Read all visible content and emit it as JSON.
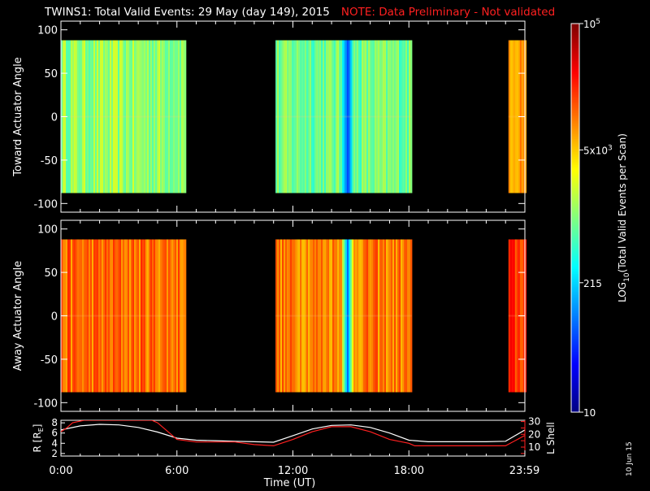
{
  "header": {
    "title": "TWINS1: Total Valid Events: 29 May (day 149), 2015",
    "note": "NOTE: Data Preliminary - Not validated"
  },
  "date_stamp": "10 Jun 15",
  "colorbar": {
    "label": "LOG10(Total Valid Events per Scan)",
    "ticks": [
      {
        "value": 100000,
        "label": "10^5"
      },
      {
        "value": 5000,
        "label": "5x10^3"
      },
      {
        "value": 215,
        "label": "215"
      },
      {
        "value": 10,
        "label": "10"
      }
    ],
    "scale": "log",
    "range": [
      10,
      100000
    ]
  },
  "colors": {
    "axis": "#ffffff",
    "note": "#ff2020",
    "lshell": "#ff2020",
    "radius": "#ffffff"
  },
  "chart_data": [
    {
      "type": "heatmap",
      "panel": "top",
      "ylabel": "Toward Actuator Angle",
      "ylim": [
        -110,
        110
      ],
      "yticks": [
        100,
        50,
        0,
        -50,
        -100
      ],
      "xlim": [
        0,
        24
      ],
      "angle_range": [
        -88,
        88
      ],
      "scale": "log",
      "data_blocks": [
        {
          "start_hour": 0.0,
          "end_hour": 6.45,
          "typical_events": 1200
        },
        {
          "start_hour": 11.1,
          "end_hour": 18.15,
          "typical_events": 900,
          "min_at_hour": 14.8,
          "min_events": 60
        },
        {
          "start_hour": 23.15,
          "end_hour": 24.0,
          "typical_events": 9000
        }
      ]
    },
    {
      "type": "heatmap",
      "panel": "middle",
      "ylabel": "Away Actuator Angle",
      "ylim": [
        -110,
        110
      ],
      "yticks": [
        100,
        50,
        0,
        -50,
        -100
      ],
      "xlim": [
        0,
        24
      ],
      "angle_range": [
        -88,
        88
      ],
      "scale": "log",
      "data_blocks": [
        {
          "start_hour": 0.0,
          "end_hour": 6.45,
          "typical_events": 12000
        },
        {
          "start_hour": 11.1,
          "end_hour": 18.15,
          "typical_events": 10000,
          "min_at_hour": 14.8,
          "min_events": 80
        },
        {
          "start_hour": 23.15,
          "end_hour": 24.0,
          "typical_events": 20000
        }
      ]
    },
    {
      "type": "line",
      "panel": "bottom",
      "xlabel": "Time (UT)",
      "ylabel": "R [RE]",
      "ylim": [
        1.5,
        8.5
      ],
      "yticks": [
        2,
        4,
        6,
        8
      ],
      "y2label": "L Shell",
      "y2lim": [
        3,
        31
      ],
      "y2ticks": [
        5,
        10,
        15,
        20,
        25,
        30
      ],
      "xticks": [
        {
          "value": 0,
          "label": "0:00"
        },
        {
          "value": 6,
          "label": "6:00"
        },
        {
          "value": 12,
          "label": "12:00"
        },
        {
          "value": 18,
          "label": "18:00"
        },
        {
          "value": 23.98,
          "label": "23:59"
        }
      ],
      "series": [
        {
          "name": "R [RE]",
          "axis": "left",
          "x": [
            0,
            1,
            2,
            3,
            4,
            5,
            6,
            7,
            8,
            9,
            10,
            11,
            12,
            13,
            14,
            15,
            16,
            17,
            18,
            19,
            20,
            21,
            22,
            23,
            24
          ],
          "values": [
            6.6,
            7.4,
            7.7,
            7.6,
            7.1,
            6.2,
            5.0,
            4.6,
            4.5,
            4.4,
            4.3,
            4.2,
            5.5,
            6.8,
            7.5,
            7.6,
            7.1,
            6.0,
            4.6,
            4.3,
            4.3,
            4.3,
            4.3,
            4.4,
            6.6
          ]
        },
        {
          "name": "L Shell",
          "axis": "right",
          "x": [
            0,
            0.3,
            0.6,
            1.2,
            4.7,
            5.0,
            6.0,
            7.0,
            8.0,
            9.0,
            10.0,
            11.0,
            12.0,
            13.0,
            14.0,
            15.0,
            16.0,
            17.0,
            18.0,
            18.3,
            19.0,
            20.0,
            21.0,
            22.0,
            23.0,
            23.98
          ],
          "values": [
            22,
            25,
            29,
            31,
            31,
            29,
            16,
            14,
            14,
            14,
            12,
            11,
            16,
            22,
            26,
            26,
            22,
            16,
            13,
            11,
            11,
            11,
            11,
            11,
            11,
            19
          ]
        }
      ]
    }
  ]
}
